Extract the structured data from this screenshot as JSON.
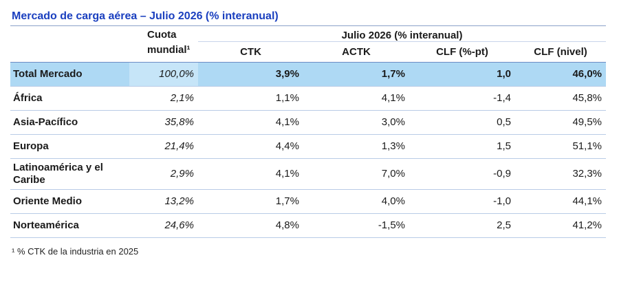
{
  "title": "Mercado de carga aérea – Julio 2026 (% interanual)",
  "header": {
    "share_label": "Cuota mundial¹",
    "group_label": "Julio 2026 (% interanual)",
    "columns": [
      "CTK",
      "ACTK",
      "CLF (%-pt)",
      "CLF (nivel)"
    ]
  },
  "rows": [
    {
      "name": "Total Mercado",
      "share": "100,0%",
      "ctk": "3,9%",
      "actk": "1,7%",
      "clf_pt": "1,0",
      "clf_level": "46,0%"
    },
    {
      "name": "África",
      "share": "2,1%",
      "ctk": "1,1%",
      "actk": "4,1%",
      "clf_pt": "-1,4",
      "clf_level": "45,8%"
    },
    {
      "name": "Asia-Pacífico",
      "share": "35,8%",
      "ctk": "4,1%",
      "actk": "3,0%",
      "clf_pt": "0,5",
      "clf_level": "49,5%"
    },
    {
      "name": "Europa",
      "share": "21,4%",
      "ctk": "4,4%",
      "actk": "1,3%",
      "clf_pt": "1,5",
      "clf_level": "51,1%"
    },
    {
      "name": "Latinoamérica y el Caribe",
      "share": "2,9%",
      "ctk": "4,1%",
      "actk": "7,0%",
      "clf_pt": "-0,9",
      "clf_level": "32,3%"
    },
    {
      "name": "Oriente Medio",
      "share": "13,2%",
      "ctk": "1,7%",
      "actk": "4,0%",
      "clf_pt": "-1,0",
      "clf_level": "44,1%"
    },
    {
      "name": "Norteamérica",
      "share": "24,6%",
      "ctk": "4,8%",
      "actk": "-1,5%",
      "clf_pt": "2,5",
      "clf_level": "41,2%"
    }
  ],
  "footnote": "¹ % CTK de la industria en 2025",
  "colors": {
    "title": "#1a3fbf",
    "highlight_row": "#aed9f4",
    "rule": "#b8cbe6"
  }
}
